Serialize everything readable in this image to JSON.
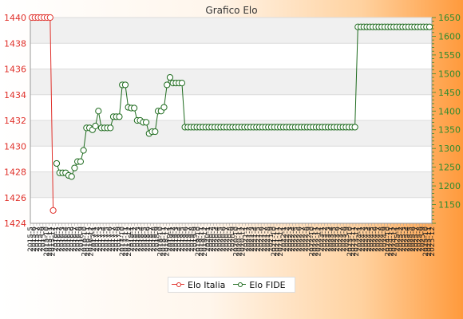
{
  "chart_data": {
    "type": "line",
    "title": "Grafico Elo",
    "legend_position": "bottom-center",
    "grid": true,
    "colors": {
      "italia": "#e0302a",
      "fide": "#1e6b1e"
    },
    "y_left": {
      "ylim": [
        1424,
        1440
      ],
      "ticks": [
        1424,
        1426,
        1428,
        1430,
        1432,
        1434,
        1436,
        1438,
        1440
      ]
    },
    "y_right": {
      "ylim": [
        1100,
        1650
      ],
      "ticks": [
        1150,
        1200,
        1250,
        1300,
        1350,
        1400,
        1450,
        1500,
        1550,
        1600,
        1650
      ]
    },
    "x_tick_labels": [
      "2015-5",
      "2015-6",
      "2015-7",
      "2015-8",
      "2015-9",
      "2015-10",
      "2015-11",
      "2015-12",
      "2016-1",
      "2016-2",
      "2016-3",
      "2016-4",
      "2016-5",
      "2016-6",
      "2016-7",
      "2016-8",
      "2016-9",
      "2016-10",
      "2016-11",
      "2016-12",
      "2017-1",
      "2017-2",
      "2017-3",
      "2017-4",
      "2017-5",
      "2017-6",
      "2017-7",
      "2017-8",
      "2017-9",
      "2017-10",
      "2017-11",
      "2017-12",
      "2018-1",
      "2018-2",
      "2018-3",
      "2018-4",
      "2018-5",
      "2018-6",
      "2018-7",
      "2018-8",
      "2018-9",
      "2018-10",
      "2018-11",
      "2018-12",
      "2019-1",
      "2019-2",
      "2019-3",
      "2019-4",
      "2019-5",
      "2019-6",
      "2019-7",
      "2019-8",
      "2019-9",
      "2019-10",
      "2019-11",
      "2019-12",
      "2020-1",
      "2020-2",
      "2020-3",
      "2020-4",
      "2020-5",
      "2020-6",
      "2020-7",
      "2020-8",
      "2020-9",
      "2020-10",
      "2020-11",
      "2020-12",
      "2021-1",
      "2021-2",
      "2021-3",
      "2021-4",
      "2021-5",
      "2021-6",
      "2021-7",
      "2021-8",
      "2021-9",
      "2021-10",
      "2021-11",
      "2021-12",
      "2022-1",
      "2022-2",
      "2022-3",
      "2022-4",
      "2022-5",
      "2022-6",
      "2022-7",
      "2022-8",
      "2022-9",
      "2022-10",
      "2022-11",
      "2022-12",
      "2023-1",
      "2023-2",
      "2023-3",
      "2023-4",
      "2023-5",
      "2023-6",
      "2023-7",
      "2023-8",
      "2023-9",
      "2023-10",
      "2023-11",
      "2023-12",
      "2024-1",
      "2024-2",
      "2024-3",
      "2024-4",
      "2024-5",
      "2024-6",
      "2024-7",
      "2024-8",
      "2024-9",
      "2024-10",
      "2024-11",
      "2024-12",
      "2025-1",
      "2025-2",
      "2025-3",
      "2025-4",
      "2025-5",
      "2025-6",
      "2025-7",
      "2025-8",
      "2025-9",
      "2025-10",
      "2025-11",
      "2025-12"
    ],
    "series": [
      {
        "name": "Elo Italia",
        "axis": "left",
        "values": [
          1440,
          1440,
          1440,
          1440,
          1440,
          1440,
          1440,
          1425
        ]
      },
      {
        "name": "Elo FIDE",
        "axis": "right",
        "values": [
          1260,
          1235,
          1235,
          1235,
          1228,
          1225,
          1248,
          1265,
          1265,
          1295,
          1355,
          1355,
          1350,
          1360,
          1400,
          1355,
          1355,
          1355,
          1355,
          1385,
          1385,
          1385,
          1470,
          1470,
          1410,
          1408,
          1408,
          1375,
          1375,
          1370,
          1370,
          1340,
          1345,
          1345,
          1400,
          1400,
          1410,
          1470,
          1490,
          1475,
          1475,
          1475,
          1475,
          1357,
          1357,
          1357,
          1357,
          1357,
          1357,
          1357,
          1357,
          1357,
          1357,
          1357,
          1357,
          1357,
          1357,
          1357,
          1357,
          1357,
          1357,
          1357,
          1357,
          1357,
          1357,
          1357,
          1357,
          1357,
          1357,
          1357,
          1357,
          1357,
          1357,
          1357,
          1357,
          1357,
          1357,
          1357,
          1357,
          1357,
          1357,
          1357,
          1357,
          1357,
          1357,
          1357,
          1357,
          1357,
          1357,
          1357,
          1357,
          1357,
          1357,
          1357,
          1357,
          1357,
          1357,
          1357,
          1357,
          1357,
          1357,
          1625,
          1625,
          1625,
          1625,
          1625,
          1625,
          1625,
          1625,
          1625,
          1625,
          1625,
          1625,
          1625,
          1625,
          1625,
          1625,
          1625,
          1625,
          1625,
          1625,
          1625,
          1625,
          1625,
          1625,
          1625
        ]
      }
    ]
  }
}
